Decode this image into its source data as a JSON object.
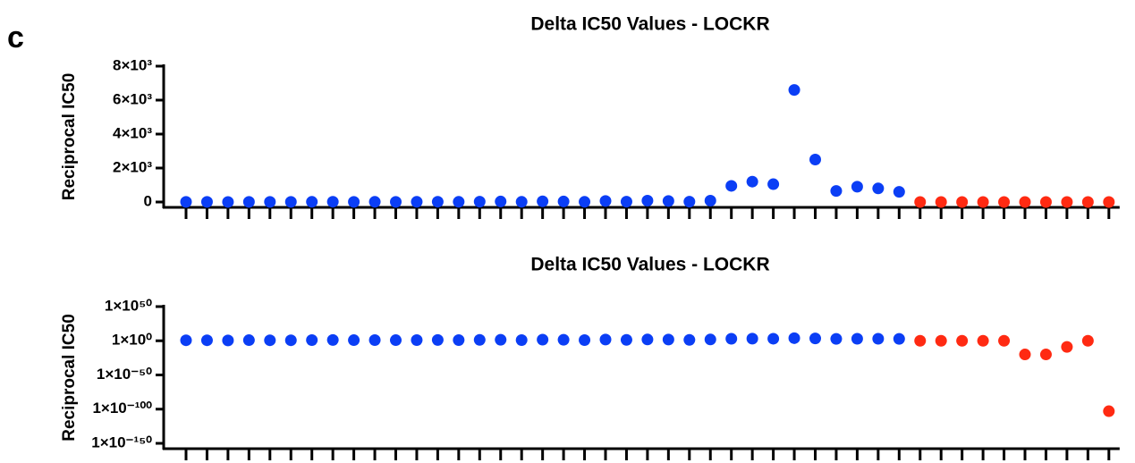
{
  "panel_label": "c",
  "chart_data": [
    {
      "type": "scatter",
      "title": "Delta IC50 Values - LOCKR",
      "y_label": "Reciprocal IC50",
      "categories": [
        null,
        null,
        null,
        null,
        null,
        null,
        null,
        null,
        null,
        null,
        null,
        null,
        null,
        null,
        null,
        null,
        null,
        null,
        null,
        null,
        null,
        null,
        null,
        null,
        null,
        null,
        null,
        null,
        null,
        null,
        null,
        null,
        null,
        null,
        null,
        null,
        null,
        null,
        null,
        null,
        null,
        null,
        null,
        null,
        null
      ],
      "series": [
        {
          "color": "#0b3ef5",
          "values": [
            5,
            5,
            3,
            8,
            5,
            5,
            10,
            15,
            8,
            10,
            8,
            10,
            15,
            10,
            20,
            30,
            10,
            40,
            30,
            10,
            60,
            20,
            80,
            60,
            20,
            80,
            950,
            1200,
            1050,
            6600,
            2500,
            650,
            900,
            800,
            600,
            null,
            null,
            null,
            null,
            null,
            null,
            null,
            null,
            null,
            null
          ]
        },
        {
          "color": "#ff2a12",
          "values": [
            null,
            null,
            null,
            null,
            null,
            null,
            null,
            null,
            null,
            null,
            null,
            null,
            null,
            null,
            null,
            null,
            null,
            null,
            null,
            null,
            null,
            null,
            null,
            null,
            null,
            null,
            null,
            null,
            null,
            null,
            null,
            null,
            null,
            null,
            null,
            1,
            1,
            1,
            1,
            1,
            1e-20,
            1e-20,
            1e-09,
            1,
            1e-103
          ]
        }
      ],
      "ylim": [
        0,
        8000
      ],
      "yticks": [
        0,
        {
          "value": 2000,
          "label": "2×10³"
        },
        {
          "value": 4000,
          "label": "4×10³"
        },
        {
          "value": 6000,
          "label": "6×10³"
        },
        {
          "value": 8000,
          "label": "8×10³"
        }
      ],
      "log_scale": false
    },
    {
      "type": "scatter",
      "title": "Delta IC50 Values - LOCKR",
      "y_label": "Reciprocal IC50",
      "categories": [
        null,
        null,
        null,
        null,
        null,
        null,
        null,
        null,
        null,
        null,
        null,
        null,
        null,
        null,
        null,
        null,
        null,
        null,
        null,
        null,
        null,
        null,
        null,
        null,
        null,
        null,
        null,
        null,
        null,
        null,
        null,
        null,
        null,
        null,
        null,
        null,
        null,
        null,
        null,
        null,
        null,
        null,
        null,
        null,
        null
      ],
      "series": [
        {
          "color": "#0b3ef5",
          "values": [
            5,
            5,
            3,
            8,
            5,
            5,
            10,
            15,
            8,
            10,
            8,
            10,
            15,
            10,
            20,
            30,
            10,
            40,
            30,
            10,
            60,
            20,
            80,
            60,
            20,
            80,
            950,
            1200,
            1050,
            6600,
            2500,
            650,
            900,
            800,
            600,
            null,
            null,
            null,
            null,
            null,
            null,
            null,
            null,
            null,
            null
          ]
        },
        {
          "color": "#ff2a12",
          "values": [
            null,
            null,
            null,
            null,
            null,
            null,
            null,
            null,
            null,
            null,
            null,
            null,
            null,
            null,
            null,
            null,
            null,
            null,
            null,
            null,
            null,
            null,
            null,
            null,
            null,
            null,
            null,
            null,
            null,
            null,
            null,
            null,
            null,
            null,
            null,
            1,
            1,
            1,
            1,
            1,
            1e-20,
            1e-20,
            1e-09,
            1,
            1e-103
          ]
        }
      ],
      "ylim": [
        1e-150,
        1e+50
      ],
      "yticks": [
        {
          "value": 1e-150,
          "label": "1×10⁻¹⁵⁰"
        },
        {
          "value": 1e-100,
          "label": "1×10⁻¹⁰⁰"
        },
        {
          "value": 1e-50,
          "label": "1×10⁻⁵⁰"
        },
        {
          "value": 1,
          "label": "1×10⁰"
        },
        {
          "value": 1e+50,
          "label": "1×10⁵⁰"
        }
      ],
      "log_scale": true
    }
  ]
}
